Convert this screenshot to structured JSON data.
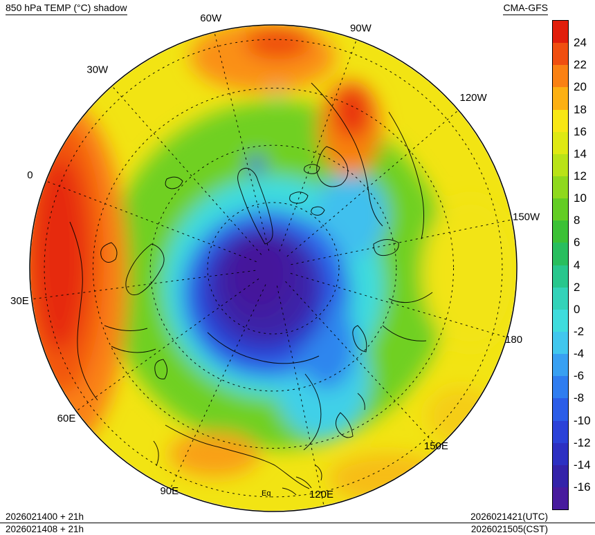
{
  "header": {
    "title": "850 hPa TEMP (°C) shadow",
    "model": "CMA-GFS"
  },
  "map": {
    "equator_label": "Eq",
    "longitude_labels": [
      {
        "label": "0",
        "angle_deg": 159,
        "radius": 1.07
      },
      {
        "label": "30W",
        "angle_deg": 131.5,
        "radius": 1.09
      },
      {
        "label": "60W",
        "angle_deg": 104,
        "radius": 1.06
      },
      {
        "label": "90W",
        "angle_deg": 70,
        "radius": 1.05
      },
      {
        "label": "120W",
        "angle_deg": 40.5,
        "radius": 1.08
      },
      {
        "label": "150W",
        "angle_deg": 11.5,
        "radius": 1.06
      },
      {
        "label": "180",
        "angle_deg": -16.5,
        "radius": 1.03
      },
      {
        "label": "150E",
        "angle_deg": -47.5,
        "radius": 0.99
      },
      {
        "label": "120E",
        "angle_deg": -78,
        "radius": 0.95
      },
      {
        "label": "90E",
        "angle_deg": -115,
        "radius": 1.01
      },
      {
        "label": "60E",
        "angle_deg": -144,
        "radius": 1.05
      },
      {
        "label": "30E",
        "angle_deg": -172.7,
        "radius": 1.05
      }
    ]
  },
  "colorbar": {
    "tick_labels": [
      "24",
      "22",
      "20",
      "18",
      "16",
      "14",
      "12",
      "10",
      "8",
      "6",
      "4",
      "2",
      "0",
      "-2",
      "-4",
      "-6",
      "-8",
      "-10",
      "-12",
      "-14",
      "-16"
    ],
    "colors_top_to_bottom": [
      "#e11e0b",
      "#f04f10",
      "#fa8113",
      "#fcb013",
      "#f8e714",
      "#dfe912",
      "#b9e317",
      "#8fd91d",
      "#63cd24",
      "#3bc135",
      "#28be5e",
      "#28c78d",
      "#33d3b9",
      "#3fdcdd",
      "#41c7ee",
      "#38a0f2",
      "#2f7df0",
      "#2b5de8",
      "#2b42d8",
      "#2d30c2",
      "#3423a9",
      "#481b9d"
    ]
  },
  "footer": {
    "left_line1": "2026021400 + 21h",
    "left_line2": "2026021408 + 21h",
    "right_line1": "2026021421(UTC)",
    "right_line2": "2026021505(CST)"
  }
}
